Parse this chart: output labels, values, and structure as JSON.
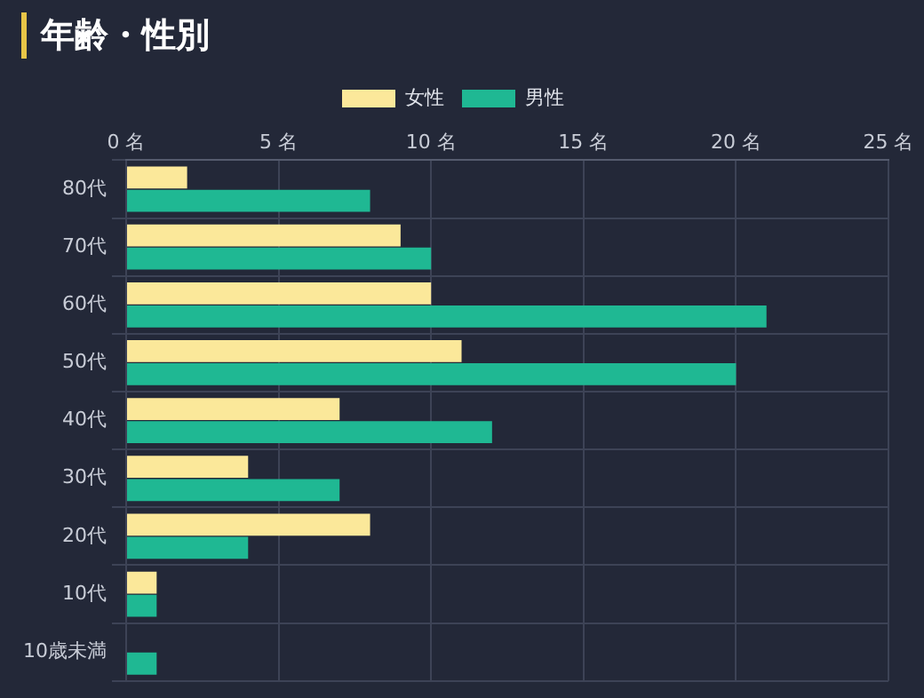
{
  "chart_data": {
    "type": "bar",
    "orientation": "horizontal",
    "title": "年齢・性別",
    "categories": [
      "80代",
      "70代",
      "60代",
      "50代",
      "40代",
      "30代",
      "20代",
      "10代",
      "10歳未満"
    ],
    "series": [
      {
        "name": "女性",
        "color": "#fbe89a",
        "values": [
          2,
          9,
          10,
          11,
          7,
          4,
          8,
          1,
          0
        ]
      },
      {
        "name": "男性",
        "color": "#1fb893",
        "values": [
          8,
          10,
          21,
          20,
          12,
          7,
          4,
          1,
          1
        ]
      }
    ],
    "xlim": [
      0,
      25
    ],
    "xticks": [
      {
        "value": 0,
        "label": "0 名"
      },
      {
        "value": 5,
        "label": "5 名"
      },
      {
        "value": 10,
        "label": "10 名"
      },
      {
        "value": 15,
        "label": "15 名"
      },
      {
        "value": 20,
        "label": "20 名"
      },
      {
        "value": 25,
        "label": "25 名"
      }
    ],
    "grid": true,
    "legend": "top"
  }
}
